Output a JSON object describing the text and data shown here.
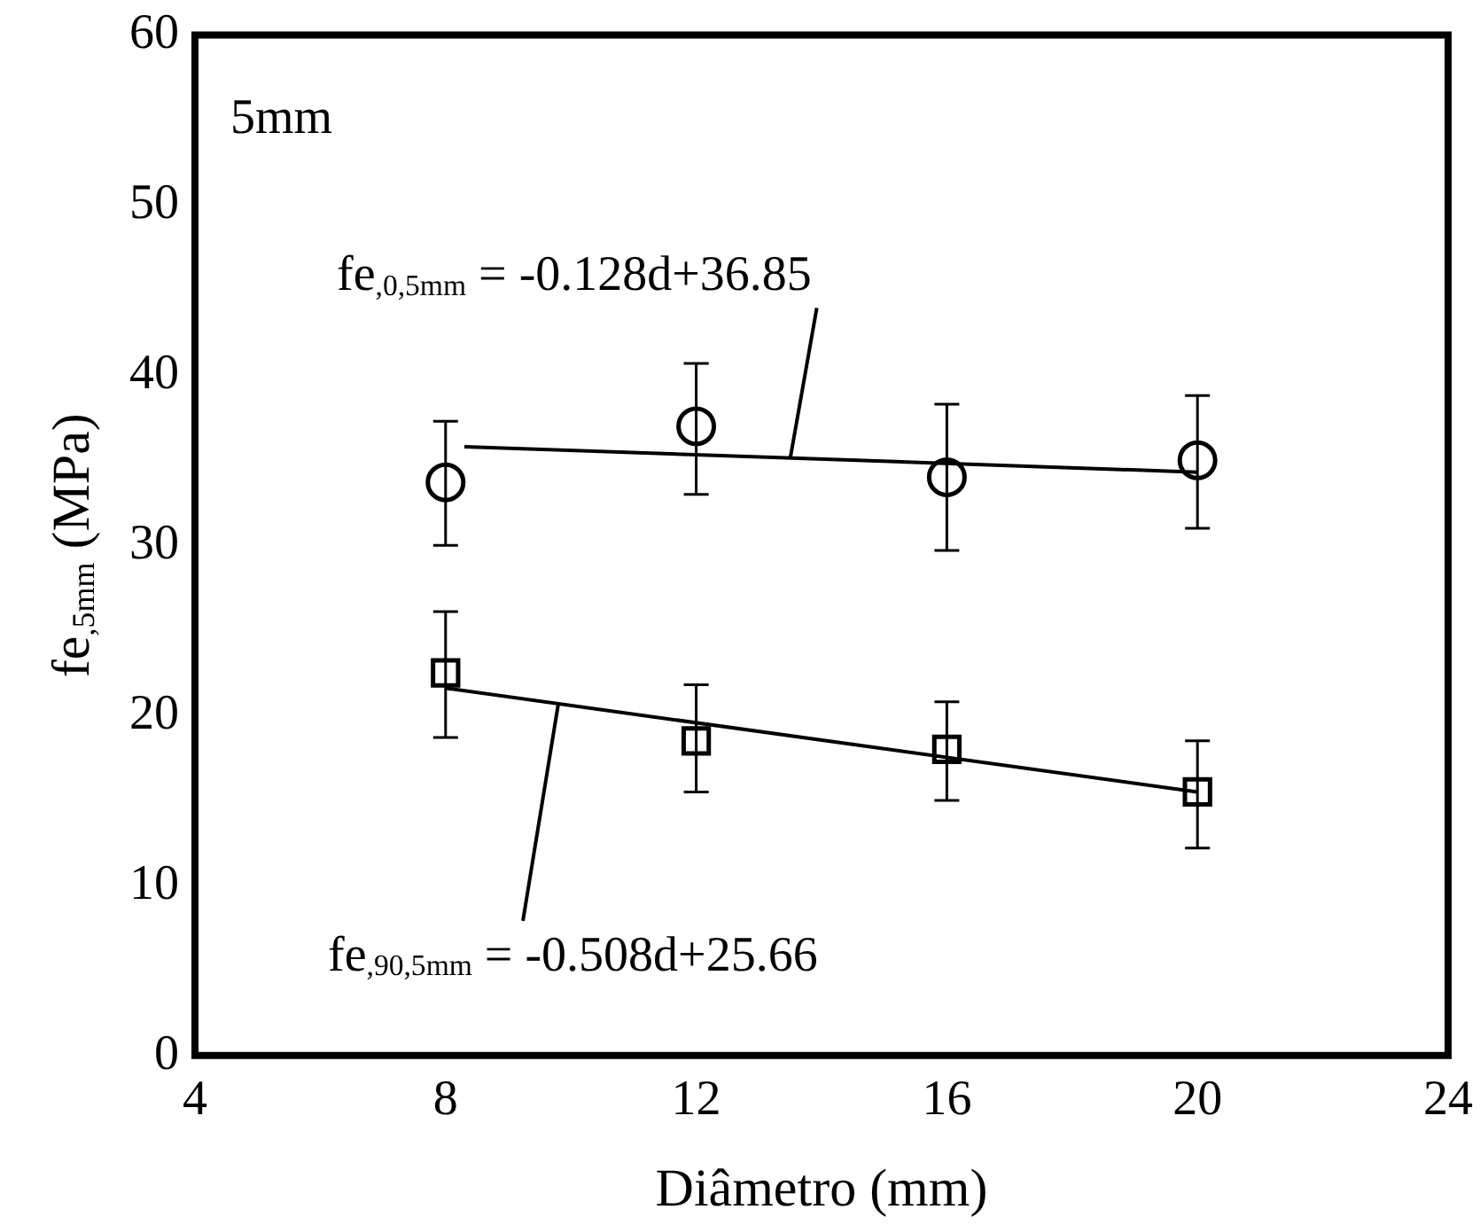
{
  "chart_data": {
    "type": "scatter",
    "xlabel": "Diâmetro (mm)",
    "ylabel": "fe$_{,5mm}$ (MPa)",
    "x": [
      8,
      12,
      16,
      20
    ],
    "series": [
      {
        "marker": "circle",
        "color": "#000000",
        "values": [
          33.7,
          37,
          34,
          35
        ],
        "errors": [
          [
            30,
            37.3
          ],
          [
            33,
            40.7
          ],
          [
            29.7,
            38.3
          ],
          [
            31,
            38.8
          ]
        ]
      },
      {
        "marker": "square",
        "color": "#000000",
        "values": [
          22.5,
          18.5,
          18,
          15.5
        ],
        "errors": [
          [
            18.7,
            26.1
          ],
          [
            15.5,
            21.8
          ],
          [
            15,
            20.8
          ],
          [
            12.2,
            18.5
          ]
        ]
      },
      {
        "type": "line",
        "marker": "none",
        "color": "#000000",
        "x": [
          8.3,
          20
        ],
        "values": [
          35.8,
          34.3
        ]
      },
      {
        "type": "line",
        "marker": "none",
        "color": "#000000",
        "x": [
          8,
          20
        ],
        "values": [
          21.6,
          15.5
        ]
      }
    ],
    "annotations": [
      "5mm",
      {
        "text": "fe$_{,0,5mm}$ = -0.128d+36.85",
        "x": 13.5,
        "y": 35.1
      },
      {
        "text": "fe$_{,90,5mm}$ = -0.508d+25.66",
        "x": 9.8,
        "y": 20.7
      }
    ],
    "xlim": [
      4,
      24
    ],
    "xticks": [
      4,
      8,
      12,
      16,
      20,
      24
    ],
    "ylim": [
      0,
      60
    ],
    "yticks": [
      0,
      10,
      20,
      30,
      40,
      50,
      60
    ],
    "grid": false,
    "legend": false
  }
}
